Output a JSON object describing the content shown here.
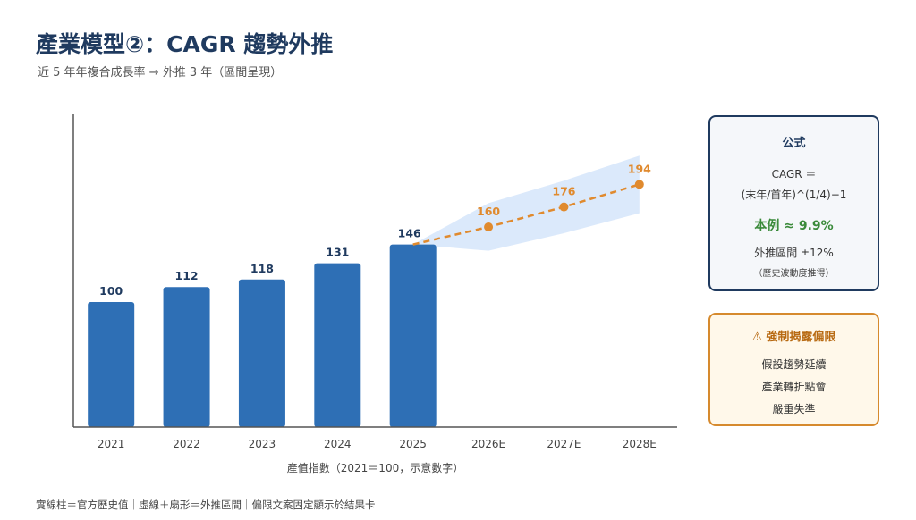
{
  "page": {
    "title": "產業模型②：CAGR 趨勢外推",
    "subtitle": "近 5 年年複合成長率 → 外推 3 年（區間呈現）",
    "footnote": "實線柱＝官方歷史值｜虛線＋扇形＝外推區間｜偏限文案固定顯示於結果卡"
  },
  "chart_data": {
    "type": "bar",
    "categories": [
      "2021",
      "2022",
      "2023",
      "2024",
      "2025",
      "2026E",
      "2027E",
      "2028E"
    ],
    "series": [
      {
        "values": [
          100,
          112,
          118,
          131,
          146,
          null,
          null,
          null
        ]
      },
      {
        "values": [
          null,
          null,
          null,
          null,
          146,
          160,
          176,
          194
        ]
      }
    ],
    "band_upper": [
      null,
      null,
      null,
      null,
      146,
      179,
      197,
      217
    ],
    "band_lower": [
      null,
      null,
      null,
      null,
      146,
      141,
      155,
      171
    ],
    "data_labels": [
      "100",
      "112",
      "118",
      "131",
      "146",
      "160",
      "176",
      "194"
    ],
    "xlabel": "產值指數（2021＝100，示意數字）",
    "ylim": [
      0,
      250
    ],
    "grid": false,
    "colors": {
      "bar": "#2e6fb5",
      "projection": "#e08a2e",
      "band": "#dbe9fb",
      "axis": "#555555"
    }
  },
  "formula_card": {
    "title": "公式",
    "line1": "CAGR ＝",
    "line2": "(末年/首年)^(1/4)−1",
    "example": "本例 ≈ 9.9%",
    "range": "外推區間 ±12%",
    "range_basis": "（歷史波動度推得）"
  },
  "warning_card": {
    "icon": "warning-triangle-icon",
    "title": "強制揭露偏限",
    "items": [
      "假設趨勢延續",
      "產業轉折點會",
      "嚴重失準"
    ]
  }
}
